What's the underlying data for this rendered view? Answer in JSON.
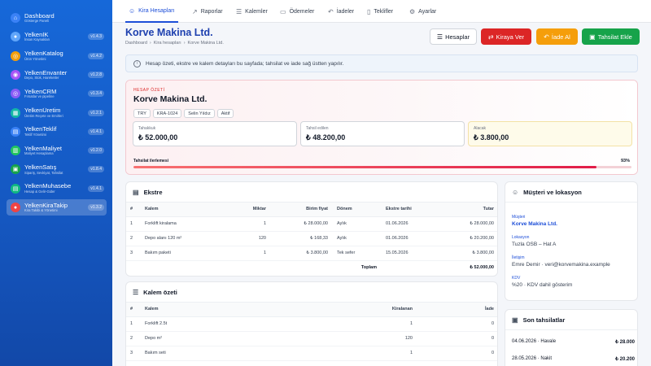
{
  "sidebar": {
    "items": [
      {
        "title": "Dashboard",
        "subtitle": "Gösterge Paneli",
        "version": "",
        "color": "#3b82f6",
        "icon": "dashboard-icon",
        "glyph": "⌂"
      },
      {
        "title": "YelkenİK",
        "subtitle": "İnsan Kaynakları",
        "version": "v1.4.3",
        "color": "#60a5fa",
        "icon": "people-icon",
        "glyph": "●"
      },
      {
        "title": "YelkenKatalog",
        "subtitle": "Ürün Yönetimi",
        "version": "v1.4.2",
        "color": "#f59e0b",
        "icon": "catalog-icon",
        "glyph": "◎"
      },
      {
        "title": "YelkenEnvanter",
        "subtitle": "Depo, Stok, Hareketler",
        "version": "v1.2.8",
        "color": "#a855f7",
        "icon": "inventory-icon",
        "glyph": "◉"
      },
      {
        "title": "YelkenCRM",
        "subtitle": "Fırsatlar ve pipeline",
        "version": "v1.3.4",
        "color": "#8b5cf6",
        "icon": "crm-icon",
        "glyph": "◎"
      },
      {
        "title": "YelkenÜretim",
        "subtitle": "Üretim Reçete ve Emirleri",
        "version": "v1.2.1",
        "color": "#14b8a6",
        "icon": "factory-icon",
        "glyph": "▦"
      },
      {
        "title": "YelkenTeklif",
        "subtitle": "Teklif Yönetimi",
        "version": "v1.4.1",
        "color": "#3b82f6",
        "icon": "document-icon",
        "glyph": "▤"
      },
      {
        "title": "YelkenMaliyet",
        "subtitle": "Maliyet Hesaplama",
        "version": "v1.2.0",
        "color": "#22c55e",
        "icon": "calculator-icon",
        "glyph": "▥"
      },
      {
        "title": "YelkenSatış",
        "subtitle": "Sipariş, Sevkiyat, Tahsilat",
        "version": "v1.8.4",
        "color": "#16a34a",
        "icon": "cart-icon",
        "glyph": "▣"
      },
      {
        "title": "YelkenMuhasebe",
        "subtitle": "Hesap & Gelir-Gider",
        "version": "v1.4.1",
        "color": "#10b981",
        "icon": "ledger-icon",
        "glyph": "▤"
      },
      {
        "title": "YelkenKiraTakip",
        "subtitle": "Kira Takibi & Yönetimi",
        "version": "v1.3.2",
        "color": "#ef4444",
        "icon": "rental-icon",
        "glyph": "●"
      }
    ]
  },
  "tabs": [
    {
      "label": "Kira Hesapları",
      "icon": "users-icon",
      "glyph": "☺"
    },
    {
      "label": "Raporlar",
      "icon": "chart-icon",
      "glyph": "↗"
    },
    {
      "label": "Kalemler",
      "icon": "list-icon",
      "glyph": "☰"
    },
    {
      "label": "Ödemeler",
      "icon": "payment-icon",
      "glyph": "▭"
    },
    {
      "label": "İadeler",
      "icon": "return-icon",
      "glyph": "↶"
    },
    {
      "label": "Teklifler",
      "icon": "file-icon",
      "glyph": "▯"
    },
    {
      "label": "Ayarlar",
      "icon": "gear-icon",
      "glyph": "⚙"
    }
  ],
  "header": {
    "title": "Korve Makina Ltd.",
    "breadcrumb": [
      "Dashboard",
      "›",
      "Kira hesapları",
      "›",
      "Korve Makina Ltd."
    ]
  },
  "actions": {
    "hesaplar": "Hesaplar",
    "kiraya_ver": "Kiraya Ver",
    "iade_al": "İade Al",
    "tahsilat_ekle": "Tahsilat Ekle"
  },
  "info": {
    "text": "Hesap özeti, ekstre ve kalem detayları bu sayfada; tahsilat ve iade sağ üstten yapılır."
  },
  "summary": {
    "label": "HESAP ÖZETİ",
    "title": "Korve Makina Ltd.",
    "chips": [
      "TRY",
      "KRA-1024",
      "Selin Yıldız",
      "Aktif"
    ],
    "metrics": [
      {
        "label": "Tahakkuk",
        "value": "₺ 52.000,00"
      },
      {
        "label": "Tahsil edilen",
        "value": "₺ 48.200,00"
      },
      {
        "label": "Alacak",
        "value": "₺ 3.800,00"
      }
    ],
    "progress_label": "Tahsilat ilerlemesi",
    "progress_pct_text": "93%",
    "progress_fraction": 0.93
  },
  "ekstre": {
    "title": "Ekstre",
    "columns": [
      "#",
      "Kalem",
      "Miktar",
      "Birim fiyat",
      "Dönem",
      "Ekstre tarihi",
      "Tutar"
    ],
    "rows": [
      [
        "1",
        "Forklift kiralama",
        "1",
        "₺ 28.000,00",
        "Aylık",
        "01.06.2026",
        "₺ 28.000,00"
      ],
      [
        "2",
        "Depo alanı 120 m²",
        "120",
        "₺ 168,33",
        "Aylık",
        "01.06.2026",
        "₺ 20.200,00"
      ],
      [
        "3",
        "Bakım paketi",
        "1",
        "₺ 3.800,00",
        "Tek sefer",
        "15.05.2026",
        "₺ 3.800,00"
      ]
    ],
    "total_label": "Toplam",
    "total_value": "₺ 52.000,00"
  },
  "kalem_ozeti": {
    "title": "Kalem özeti",
    "columns": [
      "#",
      "Kalem",
      "Kiralanan",
      "İade"
    ],
    "rows": [
      [
        "1",
        "Forklift 2.5t",
        "1",
        "0"
      ],
      [
        "2",
        "Depo m²",
        "120",
        "0"
      ],
      [
        "3",
        "Bakım seti",
        "1",
        "0"
      ]
    ]
  },
  "musteri": {
    "title": "Müşteri ve lokasyon",
    "fields": [
      {
        "label": "Müşteri",
        "value": "Korve Makina Ltd."
      },
      {
        "label": "Lokasyon",
        "value": "Tuzla OSB – Hat A"
      },
      {
        "label": "İletişim",
        "value": "Emre Demir · veri@korvemakina.example"
      },
      {
        "label": "KDV",
        "value": "%20 · KDV dahil gösterim"
      }
    ]
  },
  "tahsilatlar": {
    "title": "Son tahsilatlar",
    "rows": [
      {
        "date": "04.06.2026 · Havale",
        "amount": "₺ 28.000"
      },
      {
        "date": "28.05.2026 · Nakit",
        "amount": "₺ 20.200"
      }
    ]
  }
}
